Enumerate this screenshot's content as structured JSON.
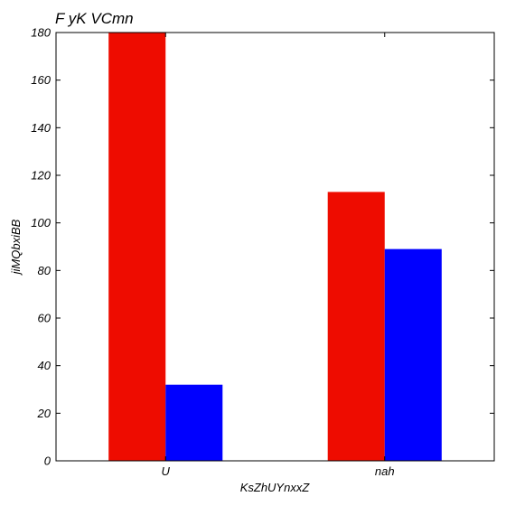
{
  "chart_data": {
    "type": "bar",
    "title": "F  yK VCmn",
    "xlabel": "KsZhUYnxxZ",
    "ylabel": "jiMQbxiBB",
    "categories": [
      "U",
      "nah"
    ],
    "series": [
      {
        "values": [
          180,
          113
        ],
        "color": "#ee0c00"
      },
      {
        "values": [
          32,
          89
        ],
        "color": "#0000ff"
      }
    ],
    "ylim": [
      0,
      180
    ],
    "yticks": [
      0,
      20,
      40,
      60,
      80,
      100,
      120,
      140,
      160,
      180
    ],
    "grid": false,
    "legend": "none"
  }
}
